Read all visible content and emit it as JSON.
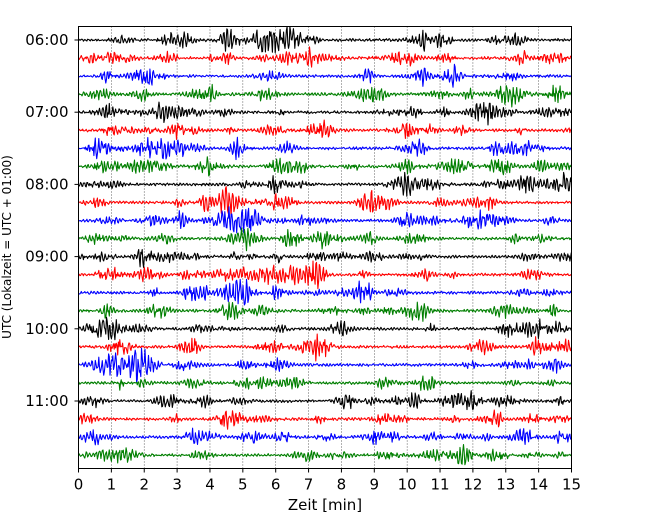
{
  "chart_data": {
    "type": "line",
    "title": "",
    "xlabel": "Zeit  [min]",
    "ylabel": "UTC (Lokalzeit = UTC + 01:00)",
    "xlim": [
      0,
      15
    ],
    "x_ticks": [
      "0",
      "1",
      "2",
      "3",
      "4",
      "5",
      "6",
      "7",
      "8",
      "9",
      "10",
      "11",
      "12",
      "13",
      "14",
      "15"
    ],
    "y_tick_labels": [
      "06:00",
      "07:00",
      "08:00",
      "09:00",
      "10:00",
      "11:00"
    ],
    "grid": "vertical dotted",
    "trace_interval_minutes": 15,
    "trace_start": "06:00",
    "trace_count": 24,
    "trace_colors": [
      "#000000",
      "#ff0000",
      "#0000ff",
      "#007f00"
    ]
  }
}
